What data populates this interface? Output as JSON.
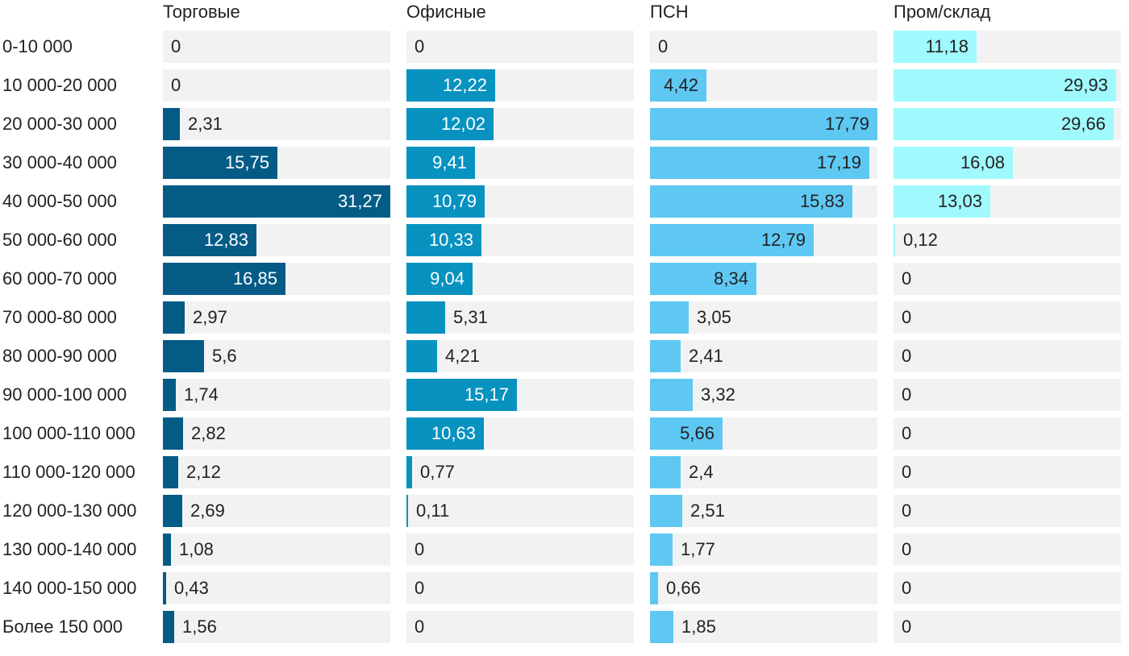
{
  "chart_data": {
    "type": "bar",
    "orientation": "horizontal",
    "layout": "small-multiples",
    "categories": [
      "0-10 000",
      "10 000-20 000",
      "20 000-30 000",
      "30 000-40 000",
      "40 000-50 000",
      "50 000-60 000",
      "60 000-70 000",
      "70 000-80 000",
      "80 000-90 000",
      "90 000-100 000",
      "100 000-110 000",
      "110 000-120 000",
      "120 000-130 000",
      "130 000-140 000",
      "140 000-150 000",
      "Более 150 000"
    ],
    "series": [
      {
        "name": "Торговые",
        "color": "#045b86",
        "label_color_inside": "#ffffff",
        "max": 31.27,
        "values": [
          0,
          0,
          2.31,
          15.75,
          31.27,
          12.83,
          16.85,
          2.97,
          5.6,
          1.74,
          2.82,
          2.12,
          2.69,
          1.08,
          0.43,
          1.56
        ],
        "labels": [
          "0",
          "0",
          "2,31",
          "15,75",
          "31,27",
          "12,83",
          "16,85",
          "2,97",
          "5,6",
          "1,74",
          "2,82",
          "2,12",
          "2,69",
          "1,08",
          "0,43",
          "1,56"
        ]
      },
      {
        "name": "Офисные",
        "color": "#0792c0",
        "label_color_inside": "#ffffff",
        "max": 31.27,
        "values": [
          0,
          12.22,
          12.02,
          9.41,
          10.79,
          10.33,
          9.04,
          5.31,
          4.21,
          15.17,
          10.63,
          0.77,
          0.11,
          0,
          0,
          0
        ],
        "labels": [
          "0",
          "12,22",
          "12,02",
          "9,41",
          "10,79",
          "10,33",
          "9,04",
          "5,31",
          "4,21",
          "15,17",
          "10,63",
          "0,77",
          "0,11",
          "0",
          "0",
          "0"
        ]
      },
      {
        "name": "ПСН",
        "color": "#5ec8f3",
        "label_color_inside": "#222222",
        "max": 17.79,
        "values": [
          0,
          4.42,
          17.79,
          17.19,
          15.83,
          12.79,
          8.34,
          3.05,
          2.41,
          3.32,
          5.66,
          2.4,
          2.51,
          1.77,
          0.66,
          1.85
        ],
        "labels": [
          "0",
          "4,42",
          "17,79",
          "17,19",
          "15,83",
          "12,79",
          "8,34",
          "3,05",
          "2,41",
          "3,32",
          "5,66",
          "2,4",
          "2,51",
          "1,77",
          "0,66",
          "1,85"
        ]
      },
      {
        "name": "Пром/склад",
        "color": "#9ff9fd",
        "label_color_inside": "#222222",
        "max": 30.6,
        "values": [
          11.18,
          29.93,
          29.66,
          16.08,
          13.03,
          0.12,
          0,
          0,
          0,
          0,
          0,
          0,
          0,
          0,
          0,
          0
        ],
        "labels": [
          "11,18",
          "29,93",
          "29,66",
          "16,08",
          "13,03",
          "0,12",
          "0",
          "0",
          "0",
          "0",
          "0",
          "0",
          "0",
          "0",
          "0",
          "0"
        ]
      }
    ]
  }
}
